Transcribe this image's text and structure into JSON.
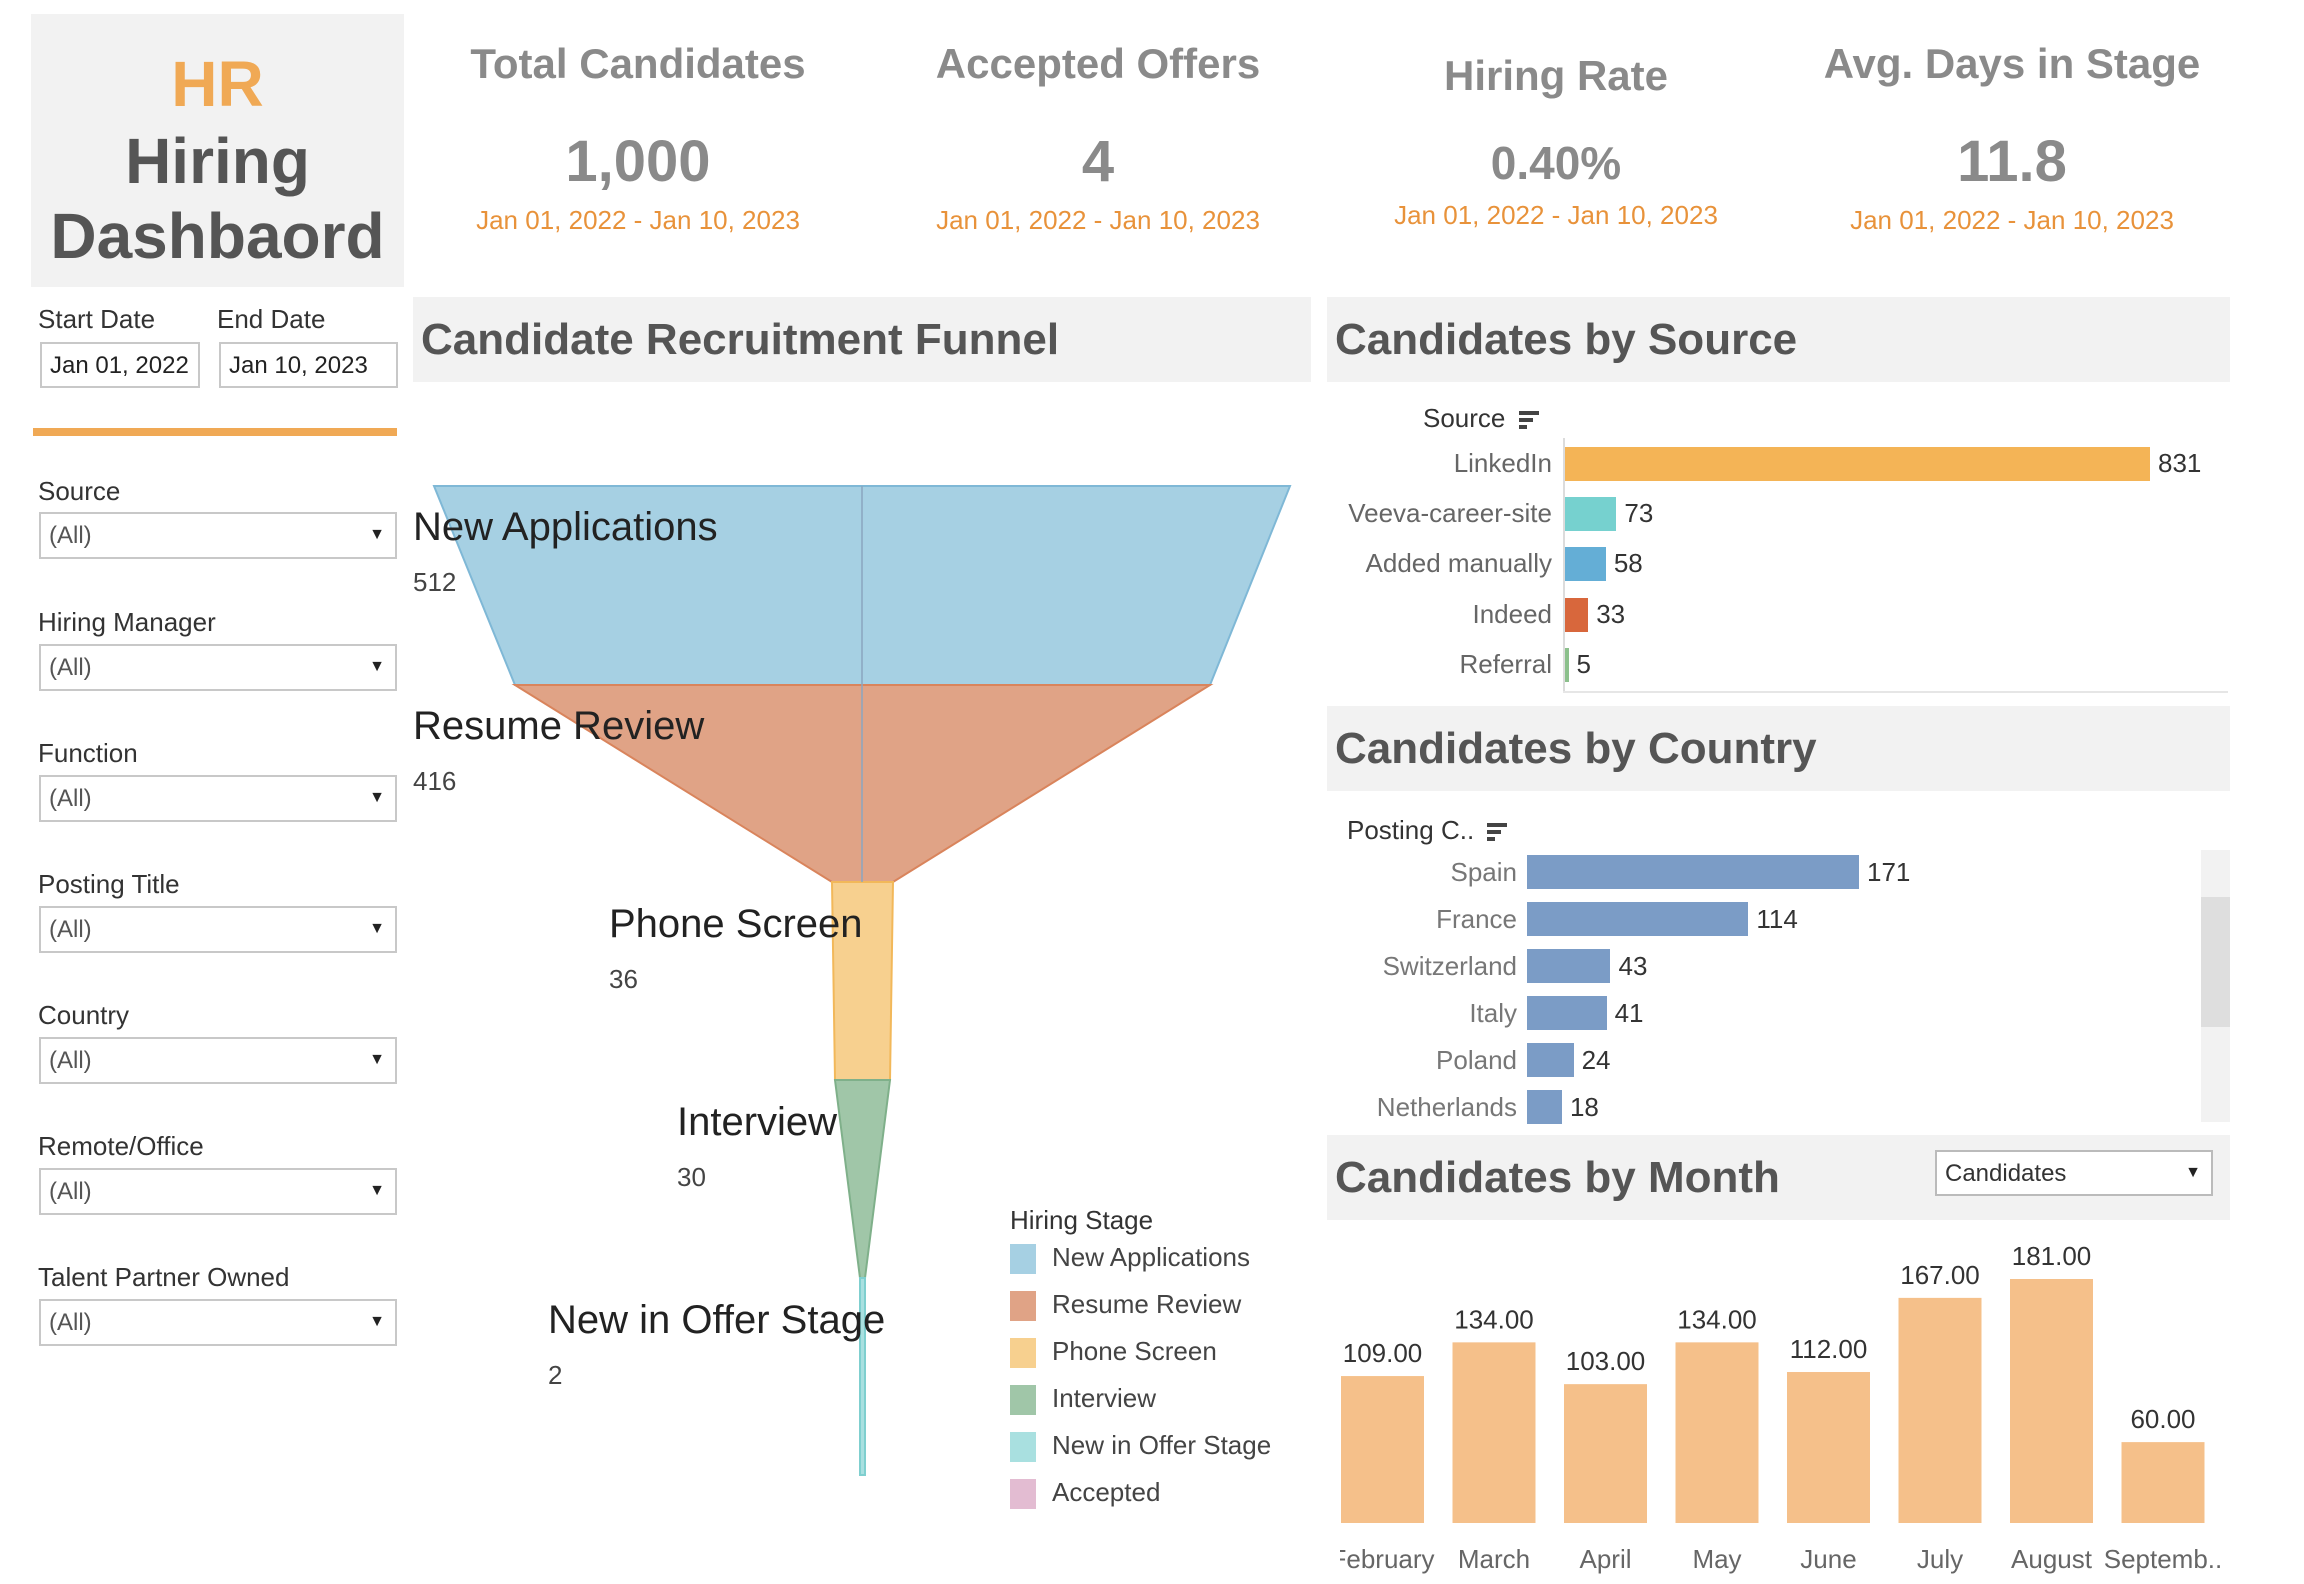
{
  "title": {
    "line1": "HR",
    "line2": "Hiring",
    "line3": "Dashbaord"
  },
  "kpis": [
    {
      "title": "Total Candidates",
      "value": "1,000",
      "date_range": "Jan 01, 2022 - Jan 10, 2023"
    },
    {
      "title": "Accepted Offers",
      "value": "4",
      "date_range": "Jan 01, 2022 - Jan 10, 2023"
    },
    {
      "title": "Hiring Rate",
      "value": "0.40%",
      "date_range": "Jan 01, 2022 - Jan 10, 2023"
    },
    {
      "title": "Avg. Days in Stage",
      "value": "11.8",
      "date_range": "Jan 01, 2022 - Jan 10, 2023"
    }
  ],
  "filters": {
    "start_date": {
      "label": "Start Date",
      "value": "Jan 01, 2022"
    },
    "end_date": {
      "label": "End Date",
      "value": "Jan 10, 2023"
    },
    "selects": [
      {
        "label": "Source",
        "value": "(All)"
      },
      {
        "label": "Hiring Manager",
        "value": "(All)"
      },
      {
        "label": "Function",
        "value": "(All)"
      },
      {
        "label": "Posting Title",
        "value": "(All)"
      },
      {
        "label": "Country",
        "value": "(All)"
      },
      {
        "label": "Remote/Office",
        "value": "(All)"
      },
      {
        "label": "Talent Partner Owned",
        "value": "(All)"
      }
    ],
    "dropdown_icon": "triangle-down"
  },
  "sections": {
    "funnel": "Candidate Recruitment Funnel",
    "source": "Candidates by Source",
    "country": "Candidates by Country",
    "month": "Candidates by Month"
  },
  "colors": {
    "accent_orange": "#f0a955",
    "date_orange": "#e8923a",
    "header_bg": "#f2f2f2",
    "country_bar": "#7b9cc6",
    "month_bar": "#f5c08a"
  },
  "chart_data": [
    {
      "type": "funnel",
      "series": [
        {
          "name": "New Applications",
          "value": 512,
          "color": "#a6d0e3",
          "stroke": "#7fb8d6"
        },
        {
          "name": "Resume Review",
          "value": 416,
          "color": "#e0a386",
          "stroke": "#d9845c"
        },
        {
          "name": "Phone Screen",
          "value": 36,
          "color": "#f7d08f",
          "stroke": "#f2b85a"
        },
        {
          "name": "Interview",
          "value": 30,
          "color": "#a0c6a8",
          "stroke": "#7fb08a"
        },
        {
          "name": "New in Offer Stage",
          "value": 2,
          "color": "#a9e0e0",
          "stroke": "#7fcfcf"
        }
      ],
      "legend": {
        "title": "Hiring Stage",
        "items": [
          {
            "label": "New Applications",
            "color": "#a6d0e3"
          },
          {
            "label": "Resume Review",
            "color": "#e0a386"
          },
          {
            "label": "Phone Screen",
            "color": "#f7d08f"
          },
          {
            "label": "Interview",
            "color": "#a0c6a8"
          },
          {
            "label": "New in Offer Stage",
            "color": "#a9e0e0"
          },
          {
            "label": "Accepted",
            "color": "#e3bcd2"
          }
        ]
      }
    },
    {
      "type": "bar",
      "orientation": "horizontal",
      "axis_label": "Source",
      "categories": [
        "LinkedIn",
        "Veeva-career-site",
        "Added manually",
        "Indeed",
        "Referral"
      ],
      "values": [
        831,
        73,
        58,
        33,
        5
      ],
      "colors": [
        "#f4b456",
        "#76d1cf",
        "#64aed6",
        "#d8673c",
        "#8cc08c"
      ]
    },
    {
      "type": "bar",
      "orientation": "horizontal",
      "axis_label": "Posting C..",
      "categories": [
        "Spain",
        "France",
        "Switzerland",
        "Italy",
        "Poland",
        "Netherlands"
      ],
      "values": [
        171,
        114,
        43,
        41,
        24,
        18
      ]
    },
    {
      "type": "bar",
      "measure": "Candidates",
      "categories": [
        "February",
        "March",
        "April",
        "May",
        "June",
        "July",
        "August",
        "Septemb.."
      ],
      "values": [
        109.0,
        134.0,
        103.0,
        134.0,
        112.0,
        167.0,
        181.0,
        60.0
      ],
      "value_labels": [
        "109.00",
        "134.00",
        "103.00",
        "134.00",
        "112.00",
        "167.00",
        "181.00",
        "60.00"
      ]
    }
  ]
}
